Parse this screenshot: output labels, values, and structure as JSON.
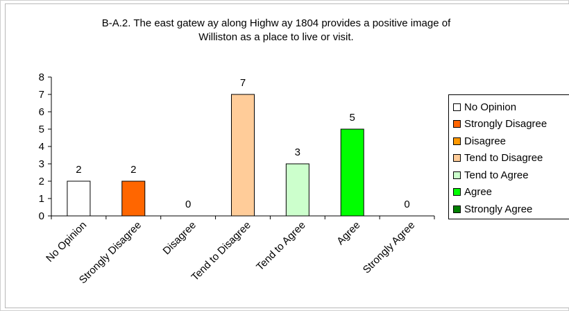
{
  "chart_data": {
    "type": "bar",
    "title_line1": "B-A.2.  The east gatew ay along Highw ay 1804 provides a positive image of",
    "title_line2": "Williston as a place to live or visit.",
    "categories": [
      "No Opinion",
      "Strongly Disagree",
      "Disagree",
      "Tend to Disagree",
      "Tend to Agree",
      "Agree",
      "Strongly Agree"
    ],
    "values": [
      2,
      2,
      0,
      7,
      3,
      5,
      0
    ],
    "colors": [
      "#FFFFFF",
      "#FF6600",
      "#FF9900",
      "#FFCC99",
      "#CCFFCC",
      "#00FF00",
      "#008000"
    ],
    "ylim": [
      0,
      8
    ],
    "yticks": [
      "0",
      "1",
      "2",
      "3",
      "4",
      "5",
      "6",
      "7",
      "8"
    ],
    "data_labels": [
      "2",
      "2",
      "0",
      "7",
      "3",
      "5",
      "0"
    ],
    "legend": {
      "position": "right",
      "items": [
        "No Opinion",
        "Strongly Disagree",
        "Disagree",
        "Tend to Disagree",
        "Tend to Agree",
        "Agree",
        "Strongly Agree"
      ]
    },
    "grid": false
  }
}
